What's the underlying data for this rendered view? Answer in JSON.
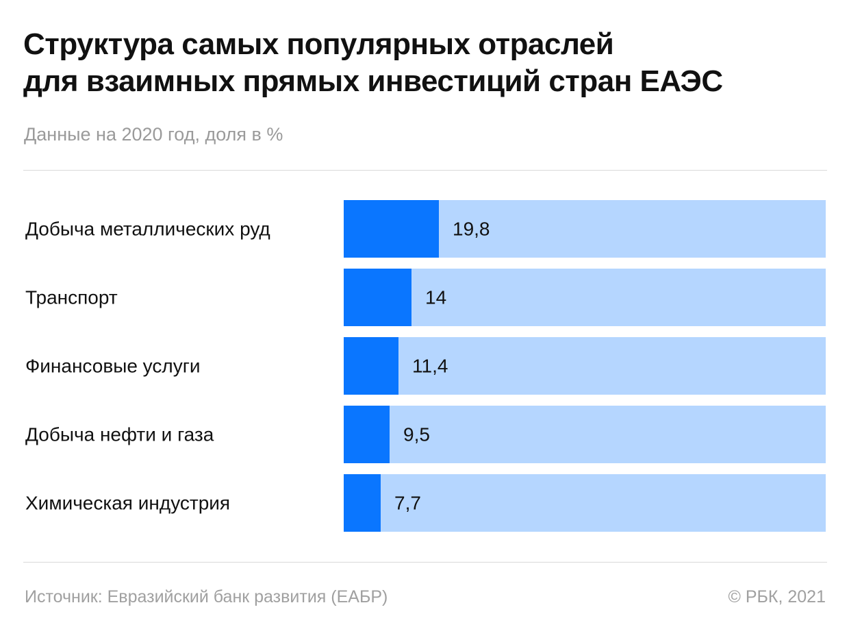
{
  "header": {
    "title_line1": "Структура самых популярных отраслей",
    "title_line2": "для взаимных прямых инвестиций стран ЕАЭС",
    "subtitle": "Данные на 2020 год, доля в %"
  },
  "footer": {
    "source": "Источник: Евразийский банк развития (ЕАБР)",
    "copyright": "©  РБК, 2021"
  },
  "colors": {
    "bar": "#0a76ff",
    "track": "#b5d6ff",
    "text": "#111111"
  },
  "chart_data": {
    "type": "bar",
    "orientation": "horizontal",
    "title": "Структура самых популярных отраслей для взаимных прямых инвестиций стран ЕАЭС",
    "subtitle": "Данные на 2020 год, доля в %",
    "categories": [
      "Добыча металлических руд",
      "Транспорт",
      "Финансовые услуги",
      "Добыча нефти и газа",
      "Химическая индустрия"
    ],
    "values": [
      19.8,
      14,
      11.4,
      9.5,
      7.7
    ],
    "value_labels": [
      "19,8",
      "14",
      "11,4",
      "9,5",
      "7,7"
    ],
    "xlim": [
      0,
      100
    ],
    "xlabel": "",
    "ylabel": "",
    "grid": false,
    "legend": "none"
  }
}
